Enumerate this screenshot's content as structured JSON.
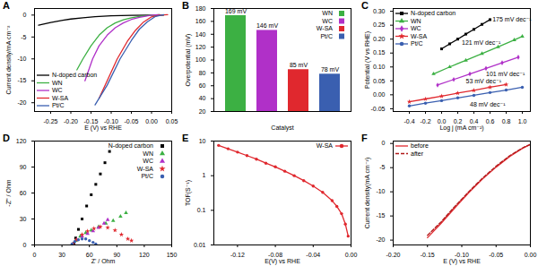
{
  "chart_data": [
    {
      "type": "line",
      "title": "A",
      "x_label": "E (V) vs RHE",
      "y_label": "Current density/mA cm⁻²",
      "xlim": [
        -0.29,
        0.05
      ],
      "xticks": [
        -0.25,
        {
          "value": -0.2,
          "label": "-0.20"
        },
        -0.15,
        {
          "value": -0.1,
          "label": "-0.10"
        },
        -0.05,
        {
          "value": 0,
          "label": "0.00"
        },
        0.05
      ],
      "ylim": [
        -22,
        1.5
      ],
      "yticks": [
        -20,
        -15,
        -10,
        -5,
        0
      ],
      "legend": "bottom-left",
      "series": [
        {
          "name": "N-doped carbon",
          "color": "#000000",
          "line_style": "solid",
          "x": [
            -0.28,
            -0.25,
            -0.22,
            -0.2,
            -0.17,
            -0.14,
            -0.1,
            -0.05,
            0,
            0.03
          ],
          "values": [
            -2.3,
            -1.7,
            -1.2,
            -0.9,
            -0.6,
            -0.35,
            -0.15,
            -0.05,
            0,
            0
          ]
        },
        {
          "name": "WN",
          "color": "#3cb043",
          "line_style": "solid",
          "x": [
            -0.185,
            -0.17,
            -0.15,
            -0.13,
            -0.11,
            -0.09,
            -0.07,
            -0.05,
            -0.03,
            0,
            0.02
          ],
          "values": [
            -12.5,
            -10,
            -7,
            -4.6,
            -2.9,
            -1.8,
            -1.1,
            -0.6,
            -0.3,
            0,
            0.1
          ]
        },
        {
          "name": "WC",
          "color": "#b030c8",
          "line_style": "solid",
          "x": [
            -0.165,
            -0.146,
            -0.13,
            -0.11,
            -0.09,
            -0.07,
            -0.05,
            -0.03,
            0,
            0.02
          ],
          "values": [
            -15,
            -10,
            -7,
            -4.6,
            -2.9,
            -1.8,
            -1,
            -0.5,
            0,
            0.1
          ]
        },
        {
          "name": "W-SA",
          "color": "#e0282e",
          "line_style": "solid",
          "x": [
            -0.13,
            -0.11,
            -0.085,
            -0.06,
            -0.04,
            -0.02,
            0,
            0.02,
            0.04
          ],
          "values": [
            -19,
            -15,
            -10,
            -6,
            -3.5,
            -1.6,
            -0.4,
            0,
            0.1
          ]
        },
        {
          "name": "Pt/C",
          "color": "#3a5fb0",
          "line_style": "solid",
          "x": [
            -0.14,
            -0.11,
            -0.078,
            -0.05,
            -0.03,
            -0.01,
            0.01,
            0.03
          ],
          "values": [
            -20.5,
            -16,
            -10,
            -5.8,
            -3.2,
            -1.5,
            -0.3,
            0.1
          ]
        }
      ]
    },
    {
      "type": "bar",
      "title": "B",
      "x_label": "Catalyst",
      "y_label": "Overpotential (mV)",
      "categories": [
        "WN",
        "WC",
        "W-SA",
        "Pt/C"
      ],
      "values": [
        169,
        146,
        85,
        78
      ],
      "value_labels": [
        "169 mV",
        "146 mV",
        "85 mV",
        "78 mV"
      ],
      "data_labels": true,
      "colors": [
        "#3cb043",
        "#b030c8",
        "#e0282e",
        "#3a5fb0"
      ],
      "ylim": [
        20,
        180
      ],
      "yticks": [
        20,
        40,
        60,
        80,
        100,
        120,
        140,
        160,
        180
      ],
      "tick_labels": "y",
      "legend": "top-right"
    },
    {
      "type": "scatter",
      "title": "C",
      "x_label": "Log j (mA cm⁻²)",
      "y_label": "Potential (V vs RHE)",
      "xlim": [
        -0.6,
        1.1
      ],
      "xticks": [
        -0.4,
        -0.2,
        {
          "value": 0,
          "label": "0.0"
        },
        0.2,
        0.4,
        0.6,
        0.8,
        {
          "value": 1,
          "label": "1.0"
        }
      ],
      "ylim": [
        -0.06,
        0.31
      ],
      "yticks": [
        -0.05,
        {
          "value": 0,
          "label": "0.00"
        },
        0.05,
        {
          "value": 0.1,
          "label": "0.10"
        },
        0.15,
        {
          "value": 0.2,
          "label": "0.20"
        },
        0.25,
        {
          "value": 0.3,
          "label": "0.30"
        }
      ],
      "legend": "top-left",
      "series": [
        {
          "name": "N-doped carbon",
          "color": "#000000",
          "marker": "square",
          "line_style": "solid",
          "x": [
            0,
            0.1,
            0.2,
            0.3,
            0.4,
            0.5,
            0.6
          ],
          "values": [
            0.165,
            0.183,
            0.2,
            0.218,
            0.235,
            0.253,
            0.27
          ]
        },
        {
          "name": "WN",
          "color": "#3cb043",
          "marker": "triangle",
          "line_style": "solid",
          "x": [
            -0.1,
            0.1,
            0.3,
            0.5,
            0.7,
            0.9,
            1.0
          ],
          "values": [
            0.075,
            0.1,
            0.124,
            0.148,
            0.172,
            0.197,
            0.21
          ]
        },
        {
          "name": "WC",
          "color": "#b030c8",
          "marker": "diamond",
          "line_style": "solid",
          "x": [
            -0.05,
            0.15,
            0.35,
            0.55,
            0.75,
            0.95
          ],
          "values": [
            0.035,
            0.055,
            0.075,
            0.095,
            0.115,
            0.135
          ]
        },
        {
          "name": "W-SA",
          "color": "#e0282e",
          "marker": "star",
          "line_style": "solid",
          "x": [
            -0.4,
            -0.2,
            0,
            0.2,
            0.4,
            0.6,
            0.8
          ],
          "values": [
            -0.025,
            -0.015,
            -0.005,
            0.006,
            0.016,
            0.027,
            0.037
          ]
        },
        {
          "name": "Pt/C",
          "color": "#3a5fb0",
          "marker": "circle",
          "line_style": "solid",
          "x": [
            -0.4,
            -0.2,
            0,
            0.2,
            0.4,
            0.6,
            0.8,
            1.0
          ],
          "values": [
            -0.04,
            -0.03,
            -0.021,
            -0.011,
            -0.002,
            0.008,
            0.017,
            0.027
          ]
        }
      ],
      "annotations": [
        {
          "text": "175 mV dec⁻¹",
          "x": 0.63,
          "y": 0.27
        },
        {
          "text": "121 mV dec⁻¹",
          "x": 0.25,
          "y": 0.188
        },
        {
          "text": "101 mV dec⁻¹",
          "x": 0.55,
          "y": 0.075
        },
        {
          "text": "53 mV dec⁻¹",
          "x": 0.3,
          "y": 0.05
        },
        {
          "text": "48 mV dec⁻¹",
          "x": 0.35,
          "y": -0.035
        }
      ]
    },
    {
      "type": "scatter",
      "title": "D",
      "x_label": "Z' / Ohm",
      "y_label": "-Z'' / Ohm",
      "xlim": [
        0,
        150
      ],
      "xticks": [
        0,
        30,
        60,
        90,
        120,
        150
      ],
      "ylim": [
        0,
        120
      ],
      "yticks": [
        0,
        30,
        60,
        90,
        120
      ],
      "legend": "top-right",
      "series": [
        {
          "name": "N-doped carbon",
          "color": "#000000",
          "marker": "square",
          "x": [
            43,
            45,
            48,
            52,
            57,
            62,
            67,
            72,
            77,
            82
          ],
          "values": [
            2,
            8,
            18,
            30,
            45,
            58,
            70,
            82,
            95,
            108
          ]
        },
        {
          "name": "WN",
          "color": "#3cb043",
          "marker": "triangle",
          "x": [
            42,
            45,
            50,
            56,
            62,
            70,
            78,
            86,
            94,
            100
          ],
          "values": [
            1,
            5,
            10,
            14,
            17,
            21,
            25,
            28,
            33,
            37
          ]
        },
        {
          "name": "WC",
          "color": "#b030c8",
          "marker": "triangle",
          "x": [
            42,
            46,
            52,
            58,
            64,
            70,
            76,
            80
          ],
          "values": [
            1,
            6,
            10,
            13,
            16,
            20,
            25,
            29
          ]
        },
        {
          "name": "W-SA",
          "color": "#e0282e",
          "marker": "star",
          "x": [
            42,
            46,
            52,
            58,
            65,
            72,
            80,
            88,
            95,
            102,
            106
          ],
          "values": [
            1,
            6,
            12,
            16,
            19,
            21,
            20,
            17,
            12,
            7,
            5
          ]
        },
        {
          "name": "Pt/C",
          "color": "#3a5fb0",
          "marker": "circle",
          "x": [
            41,
            44,
            48,
            52,
            56,
            60,
            64,
            67
          ],
          "values": [
            1,
            4,
            6,
            7,
            7,
            5,
            3,
            1
          ]
        }
      ]
    },
    {
      "type": "line",
      "title": "E",
      "x_label": "E(V) vs RHE",
      "y_label": "TOF(S⁻¹)",
      "log": "y",
      "xlim": [
        -0.145,
        0
      ],
      "xticks": [
        -0.12,
        -0.08,
        -0.04,
        {
          "value": 0,
          "label": "0.00"
        }
      ],
      "ylim": [
        0.01,
        10
      ],
      "yticks": [
        0.01,
        0.1,
        1,
        10
      ],
      "legend": "top-right",
      "series": [
        {
          "name": "W-SA",
          "color": "#e0282e",
          "marker": "circle",
          "line_style": "solid",
          "x": [
            -0.14,
            -0.13,
            -0.12,
            -0.11,
            -0.1,
            -0.09,
            -0.08,
            -0.07,
            -0.06,
            -0.05,
            -0.04,
            -0.03,
            -0.02,
            -0.015,
            -0.01,
            -0.006,
            -0.003
          ],
          "values": [
            7.5,
            6,
            4.8,
            3.8,
            3,
            2.3,
            1.8,
            1.35,
            1,
            0.72,
            0.5,
            0.33,
            0.19,
            0.13,
            0.08,
            0.04,
            0.018
          ]
        }
      ]
    },
    {
      "type": "line",
      "title": "F",
      "x_label": "E (V) vs RHE",
      "y_label": "Current density(mA cm⁻²)",
      "xlim": [
        -0.2,
        0
      ],
      "xticks": [
        {
          "value": -0.2,
          "label": "-0.20"
        },
        -0.15,
        {
          "value": -0.1,
          "label": "-0.10"
        },
        -0.05,
        {
          "value": 0,
          "label": "0.00"
        }
      ],
      "ylim": [
        -21,
        0.5
      ],
      "yticks": [
        -20,
        -15,
        -10,
        -5,
        0
      ],
      "legend": "top-left",
      "series": [
        {
          "name": "before",
          "color": "#e0282e",
          "line_style": "solid",
          "x": [
            -0.15,
            -0.13,
            -0.11,
            -0.09,
            -0.07,
            -0.05,
            -0.03,
            -0.01,
            0
          ],
          "values": [
            -19.5,
            -16.5,
            -13.3,
            -10.2,
            -7.4,
            -4.9,
            -2.7,
            -0.9,
            -0.2
          ]
        },
        {
          "name": "after",
          "color": "#b01818",
          "line_style": "dashed",
          "x": [
            -0.15,
            -0.13,
            -0.11,
            -0.09,
            -0.07,
            -0.05,
            -0.03,
            -0.01,
            0
          ],
          "values": [
            -19,
            -16.2,
            -13,
            -10,
            -7.2,
            -4.7,
            -2.5,
            -0.8,
            -0.2
          ]
        }
      ]
    }
  ]
}
